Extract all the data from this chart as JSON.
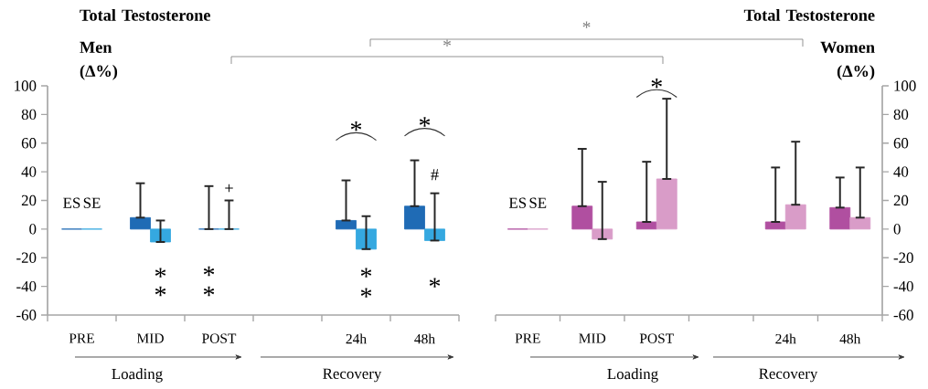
{
  "chart_data": [
    {
      "type": "bar",
      "title": "Total Testosterone Men",
      "ylabel": "(Δ%)",
      "categories": [
        "PRE",
        "MID",
        "POST",
        null,
        "24h",
        "48h"
      ],
      "series": [
        {
          "name": "ES",
          "color": "#1f6bb5",
          "values": [
            0,
            8,
            0,
            null,
            6,
            16
          ],
          "errors": [
            null,
            [
              8,
              32
            ],
            [
              0,
              30
            ],
            null,
            [
              6,
              34
            ],
            [
              16,
              48
            ]
          ]
        },
        {
          "name": "SE",
          "color": "#35a8e0",
          "values": [
            0,
            -9,
            0,
            null,
            -14,
            -8
          ],
          "errors": [
            null,
            [
              -9,
              6
            ],
            [
              0,
              20
            ],
            null,
            [
              -14,
              9
            ],
            [
              -8,
              25
            ]
          ]
        }
      ],
      "ylim": [
        -60,
        100
      ],
      "yticks": [
        -60,
        -40,
        -20,
        0,
        20,
        40,
        60,
        80,
        100
      ],
      "annotations": [
        "*",
        "*",
        "*",
        "*",
        "+",
        "*",
        "*",
        "*",
        "#",
        "*",
        "*",
        "Loading",
        "Recovery",
        "*",
        "*"
      ]
    },
    {
      "type": "bar",
      "title": "Total Testosterone Women",
      "ylabel": "(Δ%)",
      "categories": [
        "PRE",
        "MID",
        "POST",
        null,
        "24h",
        "48h"
      ],
      "series": [
        {
          "name": "ES",
          "color": "#b04fa0",
          "values": [
            0,
            16,
            5,
            null,
            5,
            15
          ],
          "errors": [
            null,
            [
              16,
              56
            ],
            [
              5,
              47
            ],
            null,
            [
              5,
              43
            ],
            [
              15,
              36
            ]
          ]
        },
        {
          "name": "SE",
          "color": "#d99cc8",
          "values": [
            0,
            -7,
            35,
            null,
            17,
            8
          ],
          "errors": [
            null,
            [
              -7,
              33
            ],
            [
              35,
              91
            ],
            null,
            [
              17,
              61
            ],
            [
              8,
              43
            ]
          ]
        }
      ],
      "ylim": [
        -60,
        100
      ],
      "yticks": [
        -60,
        -40,
        -20,
        0,
        20,
        40,
        60,
        80,
        100
      ],
      "annotations": [
        "*",
        "Loading",
        "Recovery"
      ]
    }
  ]
}
